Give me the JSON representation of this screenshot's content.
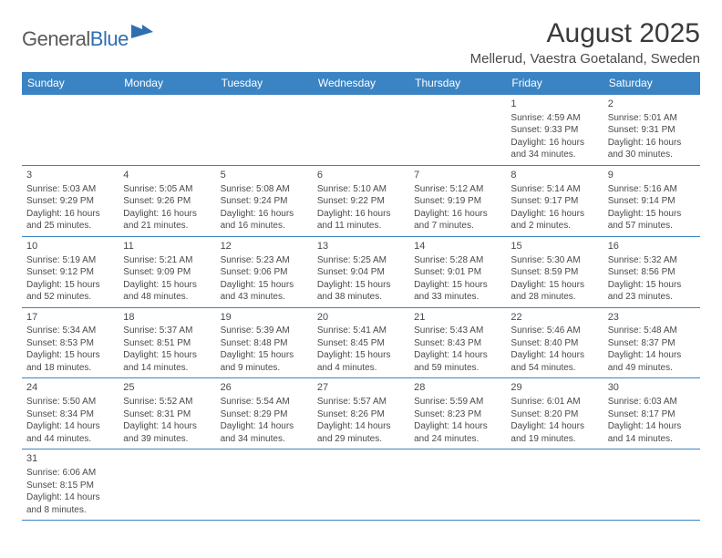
{
  "logo": {
    "word1": "General",
    "word2": "Blue"
  },
  "title": "August 2025",
  "location": "Mellerud, Vaestra Goetaland, Sweden",
  "colors": {
    "header_bg": "#3b84c4",
    "header_text": "#ffffff",
    "border": "#3b84c4",
    "logo_gray": "#5a5a5a",
    "logo_blue": "#2f6fb0"
  },
  "day_headers": [
    "Sunday",
    "Monday",
    "Tuesday",
    "Wednesday",
    "Thursday",
    "Friday",
    "Saturday"
  ],
  "weeks": [
    [
      null,
      null,
      null,
      null,
      null,
      {
        "n": "1",
        "sr": "Sunrise: 4:59 AM",
        "ss": "Sunset: 9:33 PM",
        "d1": "Daylight: 16 hours",
        "d2": "and 34 minutes."
      },
      {
        "n": "2",
        "sr": "Sunrise: 5:01 AM",
        "ss": "Sunset: 9:31 PM",
        "d1": "Daylight: 16 hours",
        "d2": "and 30 minutes."
      }
    ],
    [
      {
        "n": "3",
        "sr": "Sunrise: 5:03 AM",
        "ss": "Sunset: 9:29 PM",
        "d1": "Daylight: 16 hours",
        "d2": "and 25 minutes."
      },
      {
        "n": "4",
        "sr": "Sunrise: 5:05 AM",
        "ss": "Sunset: 9:26 PM",
        "d1": "Daylight: 16 hours",
        "d2": "and 21 minutes."
      },
      {
        "n": "5",
        "sr": "Sunrise: 5:08 AM",
        "ss": "Sunset: 9:24 PM",
        "d1": "Daylight: 16 hours",
        "d2": "and 16 minutes."
      },
      {
        "n": "6",
        "sr": "Sunrise: 5:10 AM",
        "ss": "Sunset: 9:22 PM",
        "d1": "Daylight: 16 hours",
        "d2": "and 11 minutes."
      },
      {
        "n": "7",
        "sr": "Sunrise: 5:12 AM",
        "ss": "Sunset: 9:19 PM",
        "d1": "Daylight: 16 hours",
        "d2": "and 7 minutes."
      },
      {
        "n": "8",
        "sr": "Sunrise: 5:14 AM",
        "ss": "Sunset: 9:17 PM",
        "d1": "Daylight: 16 hours",
        "d2": "and 2 minutes."
      },
      {
        "n": "9",
        "sr": "Sunrise: 5:16 AM",
        "ss": "Sunset: 9:14 PM",
        "d1": "Daylight: 15 hours",
        "d2": "and 57 minutes."
      }
    ],
    [
      {
        "n": "10",
        "sr": "Sunrise: 5:19 AM",
        "ss": "Sunset: 9:12 PM",
        "d1": "Daylight: 15 hours",
        "d2": "and 52 minutes."
      },
      {
        "n": "11",
        "sr": "Sunrise: 5:21 AM",
        "ss": "Sunset: 9:09 PM",
        "d1": "Daylight: 15 hours",
        "d2": "and 48 minutes."
      },
      {
        "n": "12",
        "sr": "Sunrise: 5:23 AM",
        "ss": "Sunset: 9:06 PM",
        "d1": "Daylight: 15 hours",
        "d2": "and 43 minutes."
      },
      {
        "n": "13",
        "sr": "Sunrise: 5:25 AM",
        "ss": "Sunset: 9:04 PM",
        "d1": "Daylight: 15 hours",
        "d2": "and 38 minutes."
      },
      {
        "n": "14",
        "sr": "Sunrise: 5:28 AM",
        "ss": "Sunset: 9:01 PM",
        "d1": "Daylight: 15 hours",
        "d2": "and 33 minutes."
      },
      {
        "n": "15",
        "sr": "Sunrise: 5:30 AM",
        "ss": "Sunset: 8:59 PM",
        "d1": "Daylight: 15 hours",
        "d2": "and 28 minutes."
      },
      {
        "n": "16",
        "sr": "Sunrise: 5:32 AM",
        "ss": "Sunset: 8:56 PM",
        "d1": "Daylight: 15 hours",
        "d2": "and 23 minutes."
      }
    ],
    [
      {
        "n": "17",
        "sr": "Sunrise: 5:34 AM",
        "ss": "Sunset: 8:53 PM",
        "d1": "Daylight: 15 hours",
        "d2": "and 18 minutes."
      },
      {
        "n": "18",
        "sr": "Sunrise: 5:37 AM",
        "ss": "Sunset: 8:51 PM",
        "d1": "Daylight: 15 hours",
        "d2": "and 14 minutes."
      },
      {
        "n": "19",
        "sr": "Sunrise: 5:39 AM",
        "ss": "Sunset: 8:48 PM",
        "d1": "Daylight: 15 hours",
        "d2": "and 9 minutes."
      },
      {
        "n": "20",
        "sr": "Sunrise: 5:41 AM",
        "ss": "Sunset: 8:45 PM",
        "d1": "Daylight: 15 hours",
        "d2": "and 4 minutes."
      },
      {
        "n": "21",
        "sr": "Sunrise: 5:43 AM",
        "ss": "Sunset: 8:43 PM",
        "d1": "Daylight: 14 hours",
        "d2": "and 59 minutes."
      },
      {
        "n": "22",
        "sr": "Sunrise: 5:46 AM",
        "ss": "Sunset: 8:40 PM",
        "d1": "Daylight: 14 hours",
        "d2": "and 54 minutes."
      },
      {
        "n": "23",
        "sr": "Sunrise: 5:48 AM",
        "ss": "Sunset: 8:37 PM",
        "d1": "Daylight: 14 hours",
        "d2": "and 49 minutes."
      }
    ],
    [
      {
        "n": "24",
        "sr": "Sunrise: 5:50 AM",
        "ss": "Sunset: 8:34 PM",
        "d1": "Daylight: 14 hours",
        "d2": "and 44 minutes."
      },
      {
        "n": "25",
        "sr": "Sunrise: 5:52 AM",
        "ss": "Sunset: 8:31 PM",
        "d1": "Daylight: 14 hours",
        "d2": "and 39 minutes."
      },
      {
        "n": "26",
        "sr": "Sunrise: 5:54 AM",
        "ss": "Sunset: 8:29 PM",
        "d1": "Daylight: 14 hours",
        "d2": "and 34 minutes."
      },
      {
        "n": "27",
        "sr": "Sunrise: 5:57 AM",
        "ss": "Sunset: 8:26 PM",
        "d1": "Daylight: 14 hours",
        "d2": "and 29 minutes."
      },
      {
        "n": "28",
        "sr": "Sunrise: 5:59 AM",
        "ss": "Sunset: 8:23 PM",
        "d1": "Daylight: 14 hours",
        "d2": "and 24 minutes."
      },
      {
        "n": "29",
        "sr": "Sunrise: 6:01 AM",
        "ss": "Sunset: 8:20 PM",
        "d1": "Daylight: 14 hours",
        "d2": "and 19 minutes."
      },
      {
        "n": "30",
        "sr": "Sunrise: 6:03 AM",
        "ss": "Sunset: 8:17 PM",
        "d1": "Daylight: 14 hours",
        "d2": "and 14 minutes."
      }
    ],
    [
      {
        "n": "31",
        "sr": "Sunrise: 6:06 AM",
        "ss": "Sunset: 8:15 PM",
        "d1": "Daylight: 14 hours",
        "d2": "and 8 minutes."
      },
      null,
      null,
      null,
      null,
      null,
      null
    ]
  ]
}
